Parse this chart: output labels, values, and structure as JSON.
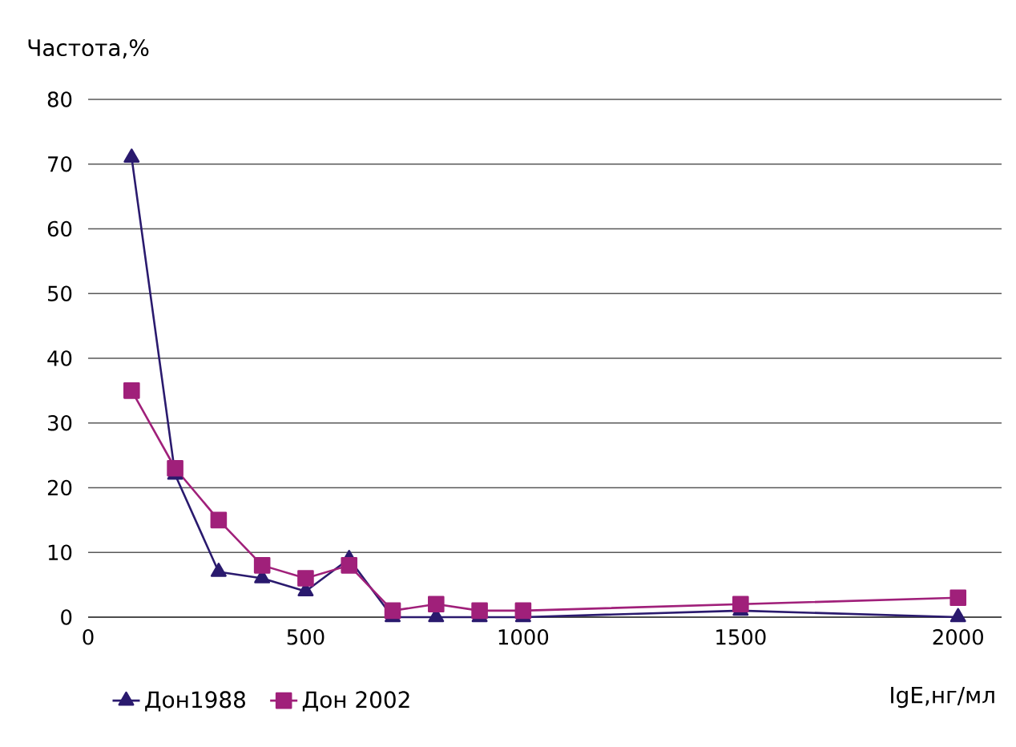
{
  "chart_data": {
    "type": "line",
    "ylabel": "Частота,%",
    "xlabel": "IgE,нг/мл",
    "x": [
      100,
      200,
      300,
      400,
      500,
      600,
      700,
      800,
      900,
      1000,
      1500,
      2000
    ],
    "xlim": [
      0,
      2100
    ],
    "xticks": [
      0,
      500,
      1000,
      1500,
      2000
    ],
    "ylim": [
      0,
      80
    ],
    "yticks": [
      0,
      10,
      20,
      30,
      40,
      50,
      60,
      70,
      80
    ],
    "grid": "y",
    "legend": "bottom",
    "series": [
      {
        "name": "Дон1988",
        "color": "#2a1a6e",
        "marker": "triangle",
        "values": [
          71,
          22,
          7,
          6,
          4,
          9,
          0,
          0,
          0,
          0,
          1,
          0
        ]
      },
      {
        "name": "Дон 2002",
        "color": "#a0207a",
        "marker": "square",
        "values": [
          35,
          23,
          15,
          8,
          6,
          8,
          1,
          2,
          1,
          1,
          2,
          3
        ]
      }
    ]
  }
}
